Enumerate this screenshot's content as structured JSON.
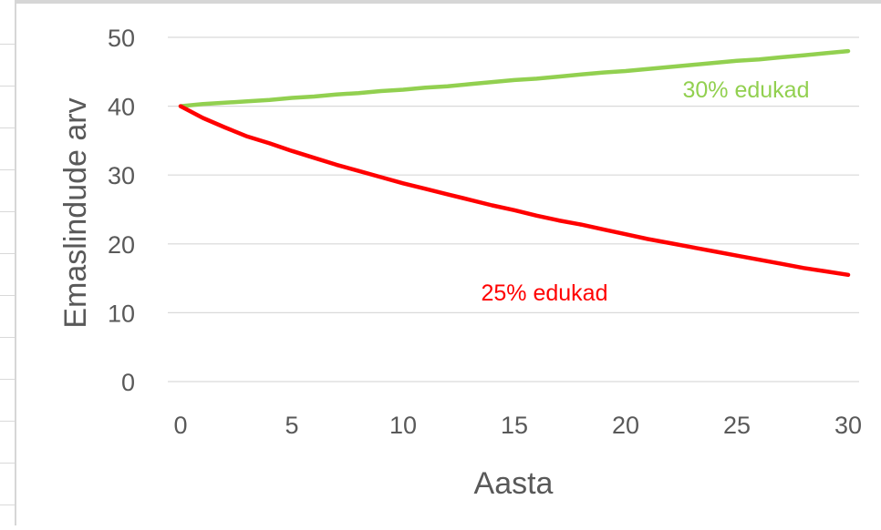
{
  "chart_data": {
    "type": "line",
    "xlabel": "Aasta",
    "ylabel": "Emaslindude arv",
    "xlim": [
      0,
      30
    ],
    "ylim": [
      0,
      50
    ],
    "x_ticks": [
      "0",
      "5",
      "10",
      "15",
      "20",
      "25",
      "30"
    ],
    "y_ticks": [
      "0",
      "10",
      "20",
      "30",
      "40",
      "50"
    ],
    "grid": "horizontal",
    "legend": "none",
    "x": [
      0,
      1,
      2,
      3,
      4,
      5,
      6,
      7,
      8,
      9,
      10,
      11,
      12,
      13,
      14,
      15,
      16,
      17,
      18,
      19,
      20,
      21,
      22,
      23,
      24,
      25,
      26,
      27,
      28,
      29,
      30
    ],
    "series": [
      {
        "name": "30% edukad",
        "color": "#92d050",
        "values": [
          40,
          40.3,
          40.5,
          40.7,
          40.9,
          41.2,
          41.4,
          41.7,
          41.9,
          42.2,
          42.4,
          42.7,
          42.9,
          43.2,
          43.5,
          43.8,
          44.0,
          44.3,
          44.6,
          44.9,
          45.1,
          45.4,
          45.7,
          46.0,
          46.3,
          46.6,
          46.8,
          47.1,
          47.4,
          47.7,
          48.0
        ]
      },
      {
        "name": "25% edukad",
        "color": "#ff0000",
        "values": [
          40,
          38.3,
          36.9,
          35.6,
          34.6,
          33.5,
          32.5,
          31.5,
          30.6,
          29.7,
          28.8,
          28.0,
          27.2,
          26.4,
          25.6,
          24.9,
          24.1,
          23.4,
          22.8,
          22.1,
          21.4,
          20.7,
          20.1,
          19.5,
          18.9,
          18.3,
          17.7,
          17.1,
          16.5,
          16.0,
          15.5
        ]
      }
    ],
    "annotations": [
      {
        "text": "30% edukad",
        "color": "#92d050",
        "series": 0
      },
      {
        "text": "25% edukad",
        "color": "#ff0000",
        "series": 1
      }
    ],
    "colors": {
      "gridline": "#d9d9d9",
      "tick_label": "#595959"
    }
  }
}
